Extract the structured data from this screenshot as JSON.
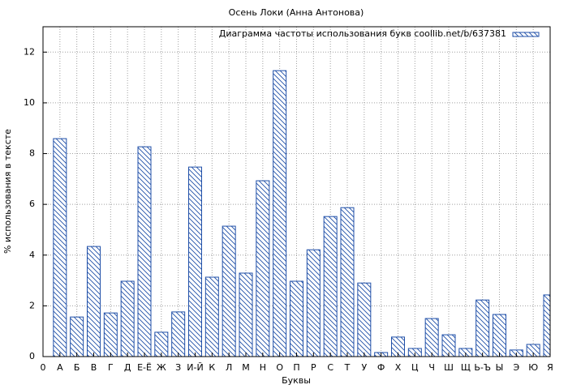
{
  "chart_data": {
    "type": "bar",
    "title": "Осень Локи (Анна Антонова)",
    "x_label": "Буквы",
    "y_label": "% использования в тексте",
    "categories": [
      "0",
      "А",
      "Б",
      "В",
      "Г",
      "Д",
      "Е-Ё",
      "Ж",
      "З",
      "И-Й",
      "К",
      "Л",
      "М",
      "Н",
      "О",
      "П",
      "Р",
      "С",
      "Т",
      "У",
      "Ф",
      "Х",
      "Ц",
      "Ч",
      "Ш",
      "Щ",
      "Ь-Ъ",
      "Ы",
      "Э",
      "Ю",
      "Я"
    ],
    "series": [
      {
        "name": "Диаграмма частоты использования букв coollib.net/b/637381",
        "color": "#1f4fa8",
        "values": [
          null,
          8.59,
          1.56,
          4.34,
          1.72,
          2.97,
          8.27,
          0.96,
          1.76,
          7.47,
          3.13,
          5.14,
          3.29,
          6.93,
          11.27,
          2.97,
          4.21,
          5.52,
          5.87,
          2.9,
          0.16,
          0.77,
          0.32,
          1.5,
          0.86,
          0.32,
          2.23,
          1.66,
          0.26,
          0.48,
          2.43
        ]
      }
    ],
    "ylim": [
      0,
      13
    ],
    "yticks": [
      0,
      2,
      4,
      6,
      8,
      10,
      12
    ],
    "grid": true,
    "legend": "top-right"
  }
}
